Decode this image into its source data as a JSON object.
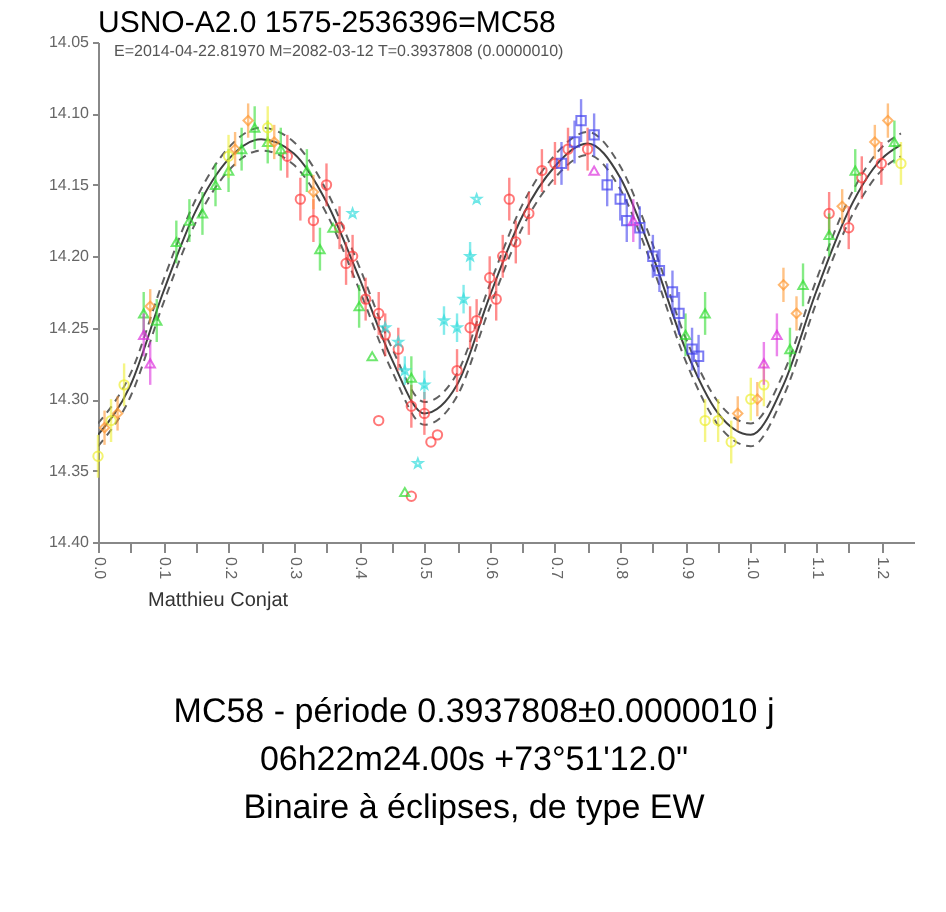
{
  "chart_data": {
    "type": "scatter",
    "title": "USNO-A2.0 1575-2536396=MC58",
    "subtitle": "E=2014-04-22.81970    M=2082-03-12    T=0.3937808 (0.0000010)",
    "xlim": [
      0,
      1.25
    ],
    "ylim": [
      14.4,
      14.05
    ],
    "xticks": [
      {
        "value": 0,
        "label": "0.0"
      },
      {
        "value": 0.05,
        "label": null
      },
      {
        "value": 0.1,
        "label": "0.1"
      },
      {
        "value": 0.15,
        "label": null
      },
      {
        "value": 0.2,
        "label": "0.2"
      },
      {
        "value": 0.25,
        "label": null
      },
      {
        "value": 0.3,
        "label": "0.3"
      },
      {
        "value": 0.35,
        "label": null
      },
      {
        "value": 0.4,
        "label": "0.4"
      },
      {
        "value": 0.45,
        "label": null
      },
      {
        "value": 0.5,
        "label": "0.5"
      },
      {
        "value": 0.55,
        "label": null
      },
      {
        "value": 0.6,
        "label": "0.6"
      },
      {
        "value": 0.65,
        "label": null
      },
      {
        "value": 0.7,
        "label": "0.7"
      },
      {
        "value": 0.75,
        "label": null
      },
      {
        "value": 0.8,
        "label": "0.8"
      },
      {
        "value": 0.85,
        "label": null
      },
      {
        "value": 0.9,
        "label": "0.9"
      },
      {
        "value": 0.95,
        "label": null
      },
      {
        "value": 1.0,
        "label": "1.0"
      },
      {
        "value": 1.05,
        "label": null
      },
      {
        "value": 1.1,
        "label": "1.1"
      },
      {
        "value": 1.15,
        "label": null
      },
      {
        "value": 1.2,
        "label": "1.2"
      }
    ],
    "yticks": [
      14.05,
      {
        "value": 14.1,
        "label": "14.10"
      },
      14.15,
      {
        "value": 14.2,
        "label": "14.20"
      },
      14.25,
      {
        "value": 14.3,
        "label": "14.30"
      },
      14.35,
      {
        "value": 14.4,
        "label": "14.40"
      }
    ],
    "grid": false,
    "series": [
      {
        "type": "line",
        "color": "#404040",
        "line_style": "solid",
        "marker": "none",
        "x": [
          0,
          0.05,
          0.1,
          0.15,
          0.2,
          0.25,
          0.3,
          0.35,
          0.4,
          0.45,
          0.5,
          0.55,
          0.6,
          0.65,
          0.7,
          0.75,
          0.8,
          0.85,
          0.9,
          0.95,
          1.0,
          1.05,
          1.1,
          1.15,
          1.2,
          1.23
        ],
        "values": [
          14.325,
          14.29,
          14.225,
          14.168,
          14.132,
          14.118,
          14.128,
          14.162,
          14.215,
          14.272,
          14.31,
          14.29,
          14.228,
          14.172,
          14.137,
          14.121,
          14.145,
          14.2,
          14.265,
          14.31,
          14.325,
          14.29,
          14.225,
          14.168,
          14.132,
          14.122
        ]
      },
      {
        "type": "line",
        "color": "#606060",
        "line_style": "dashed",
        "marker": "none",
        "x": [
          0,
          0.05,
          0.1,
          0.15,
          0.2,
          0.25,
          0.3,
          0.35,
          0.4,
          0.45,
          0.5,
          0.55,
          0.6,
          0.65,
          0.7,
          0.75,
          0.8,
          0.85,
          0.9,
          0.95,
          1.0,
          1.05,
          1.1,
          1.15,
          1.2,
          1.23
        ],
        "values": [
          14.317,
          14.282,
          14.217,
          14.16,
          14.124,
          14.11,
          14.12,
          14.154,
          14.207,
          14.264,
          14.302,
          14.282,
          14.22,
          14.164,
          14.129,
          14.113,
          14.137,
          14.192,
          14.257,
          14.302,
          14.317,
          14.282,
          14.217,
          14.16,
          14.124,
          14.114
        ]
      },
      {
        "type": "line",
        "color": "#606060",
        "line_style": "dashed",
        "marker": "none",
        "x": [
          0,
          0.05,
          0.1,
          0.15,
          0.2,
          0.25,
          0.3,
          0.35,
          0.4,
          0.45,
          0.5,
          0.55,
          0.6,
          0.65,
          0.7,
          0.75,
          0.8,
          0.85,
          0.9,
          0.95,
          1.0,
          1.05,
          1.1,
          1.15,
          1.2,
          1.23
        ],
        "values": [
          14.333,
          14.298,
          14.233,
          14.176,
          14.14,
          14.126,
          14.136,
          14.17,
          14.223,
          14.28,
          14.318,
          14.298,
          14.236,
          14.18,
          14.145,
          14.129,
          14.153,
          14.208,
          14.273,
          14.318,
          14.333,
          14.298,
          14.233,
          14.176,
          14.14,
          14.13
        ]
      },
      {
        "color": "#ff4040",
        "marker": "circle",
        "x": [
          0.29,
          0.31,
          0.33,
          0.35,
          0.37,
          0.38,
          0.39,
          0.41,
          0.43,
          0.44,
          0.46,
          0.43,
          0.48,
          0.5,
          0.51,
          0.48,
          0.52,
          0.55,
          0.57,
          0.58,
          0.6,
          0.61,
          0.62,
          0.63,
          0.64,
          0.66,
          0.68,
          0.7,
          0.72,
          0.75,
          1.12,
          1.15,
          1.17,
          1.2
        ],
        "values": [
          14.13,
          14.16,
          14.175,
          14.15,
          14.18,
          14.205,
          14.2,
          14.23,
          14.24,
          14.255,
          14.265,
          14.315,
          14.305,
          14.31,
          14.33,
          14.368,
          14.325,
          14.28,
          14.25,
          14.245,
          14.215,
          14.23,
          14.2,
          14.16,
          14.19,
          14.17,
          14.14,
          14.135,
          14.125,
          14.125,
          14.17,
          14.18,
          14.145,
          14.135
        ],
        "errors": [
          0.015,
          0.015,
          0.015,
          0.015,
          0.015,
          0.015,
          0.015,
          0.015,
          0.015,
          0.015,
          0.015,
          null,
          0.015,
          0.015,
          null,
          null,
          null,
          0.015,
          0.015,
          0.015,
          0.015,
          0.015,
          0.015,
          0.015,
          0.015,
          0.015,
          0.015,
          0.015,
          0.015,
          0.015,
          0.015,
          0.015,
          0.015,
          0.015
        ]
      },
      {
        "color": "#33dd33",
        "marker": "triangle",
        "x": [
          0.07,
          0.09,
          0.12,
          0.14,
          0.16,
          0.18,
          0.2,
          0.22,
          0.24,
          0.26,
          0.28,
          0.32,
          0.34,
          0.36,
          0.4,
          0.42,
          0.47,
          0.48,
          0.9,
          0.93,
          1.06,
          1.08,
          1.12,
          1.16,
          1.22
        ],
        "values": [
          14.24,
          14.245,
          14.19,
          14.175,
          14.17,
          14.15,
          14.14,
          14.125,
          14.11,
          14.12,
          14.125,
          14.14,
          14.195,
          14.18,
          14.235,
          14.27,
          14.365,
          14.285,
          14.255,
          14.24,
          14.265,
          14.22,
          14.185,
          14.14,
          14.12
        ],
        "errors": [
          0.015,
          0.015,
          0.015,
          0.015,
          0.015,
          0.015,
          0.015,
          0.015,
          0.015,
          0.015,
          0.015,
          0.015,
          0.015,
          null,
          0.015,
          null,
          null,
          0.015,
          0.015,
          0.015,
          0.015,
          0.015,
          0.015,
          0.015,
          0.015
        ]
      },
      {
        "color": "#4444ee",
        "marker": "square",
        "x": [
          0.71,
          0.73,
          0.74,
          0.76,
          0.78,
          0.8,
          0.81,
          0.83,
          0.85,
          0.86,
          0.88,
          0.89,
          0.91,
          0.92
        ],
        "values": [
          14.135,
          14.12,
          14.105,
          14.115,
          14.15,
          14.16,
          14.175,
          14.18,
          14.2,
          14.21,
          14.225,
          14.24,
          14.265,
          14.27
        ],
        "errors": [
          0.015,
          0.015,
          0.015,
          0.015,
          0.015,
          0.015,
          0.015,
          0.015,
          0.015,
          0.015,
          0.015,
          0.015,
          0.015,
          0.015
        ]
      },
      {
        "color": "#ff9933",
        "marker": "diamond",
        "x": [
          0.01,
          0.03,
          0.08,
          0.21,
          0.23,
          0.27,
          0.33,
          0.98,
          1.01,
          1.05,
          1.07,
          1.14,
          1.19,
          1.21
        ],
        "values": [
          14.32,
          14.31,
          14.235,
          14.125,
          14.105,
          14.12,
          14.155,
          14.31,
          14.3,
          14.22,
          14.24,
          14.165,
          14.12,
          14.105
        ],
        "errors": [
          0.012,
          0.012,
          0.012,
          0.012,
          0.012,
          0.012,
          0.012,
          0.012,
          0.012,
          0.012,
          0.012,
          0.012,
          0.012,
          0.012
        ]
      },
      {
        "color": "#eeee33",
        "marker": "circle",
        "x": [
          0.0,
          0.02,
          0.04,
          0.2,
          0.26,
          0.93,
          0.95,
          0.97,
          1.0,
          1.02,
          1.23
        ],
        "values": [
          14.34,
          14.315,
          14.29,
          14.13,
          14.11,
          14.315,
          14.315,
          14.33,
          14.3,
          14.29,
          14.135
        ],
        "errors": [
          0.015,
          0.015,
          0.015,
          0.015,
          0.015,
          0.015,
          0.015,
          0.015,
          0.015,
          0.015,
          0.015
        ]
      },
      {
        "color": "#33dddd",
        "marker": "star",
        "x": [
          0.39,
          0.44,
          0.46,
          0.47,
          0.49,
          0.5,
          0.53,
          0.55,
          0.56,
          0.57,
          0.58
        ],
        "values": [
          14.17,
          14.25,
          14.26,
          14.28,
          14.345,
          14.29,
          14.245,
          14.25,
          14.23,
          14.2,
          14.16
        ],
        "errors": [
          null,
          null,
          null,
          0.01,
          null,
          0.01,
          0.01,
          0.01,
          0.01,
          0.01,
          null
        ]
      },
      {
        "color": "#dd33dd",
        "marker": "triangle",
        "x": [
          0.07,
          0.08,
          0.76,
          0.82,
          1.04,
          1.02
        ],
        "values": [
          14.255,
          14.275,
          14.14,
          14.175,
          14.255,
          14.275
        ],
        "errors": [
          0.015,
          0.015,
          null,
          0.015,
          0.015,
          0.015
        ]
      }
    ],
    "annotations": [
      "Matthieu Conjat",
      "MC58 - période 0.3937808±0.0000010 j",
      "06h22m24.00s +73°51'12.0\"",
      "Binaire à éclipses, de type EW"
    ]
  }
}
